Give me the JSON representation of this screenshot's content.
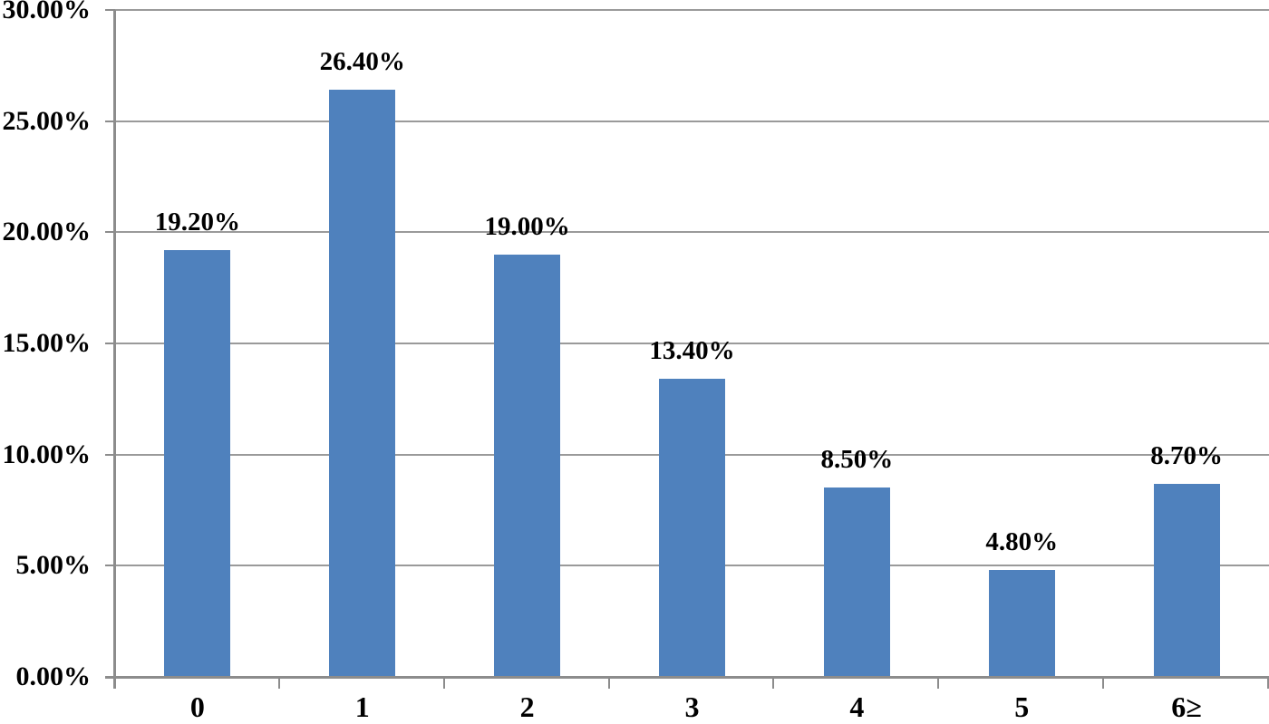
{
  "chart_data": {
    "type": "bar",
    "title": "",
    "xlabel": "",
    "ylabel": "",
    "categories": [
      "0",
      "1",
      "2",
      "3",
      "4",
      "5",
      "6≥"
    ],
    "values": [
      19.2,
      26.4,
      19.0,
      13.4,
      8.5,
      4.8,
      8.7
    ],
    "data_labels": [
      "19.20%",
      "26.40%",
      "19.00%",
      "13.40%",
      "8.50%",
      "4.80%",
      "8.70%"
    ],
    "y_tick_labels": [
      "0.00%",
      "5.00%",
      "10.00%",
      "15.00%",
      "20.00%",
      "25.00%",
      "30.00%"
    ],
    "y_tick_values": [
      0,
      5,
      10,
      15,
      20,
      25,
      30
    ],
    "ylim": [
      0,
      30
    ],
    "grid": true,
    "legend": false,
    "bar_color": "#4f81bd",
    "grid_color": "#9a9a9a",
    "axis_color": "#8c8c8c",
    "label_color": "#000000"
  }
}
